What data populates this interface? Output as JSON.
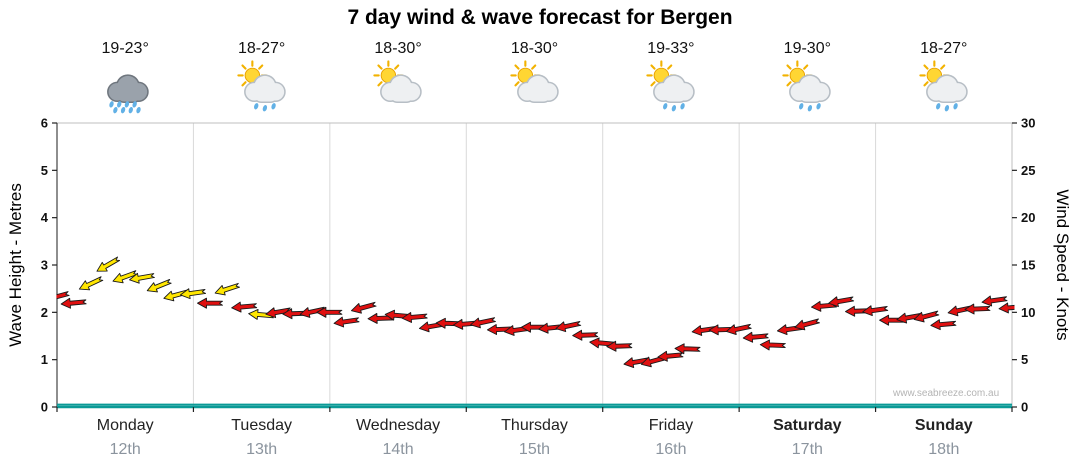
{
  "title": "7 day wind & wave forecast for Bergen",
  "watermark": "www.seabreeze.com.au",
  "axes": {
    "left_title": "Wave Height - Metres",
    "right_title": "Wind Speed - Knots",
    "left_ticks": [
      0,
      1,
      2,
      3,
      4,
      5,
      6
    ],
    "right_ticks": [
      0,
      5,
      10,
      15,
      20,
      25,
      30
    ]
  },
  "days": [
    {
      "name": "Monday",
      "date": "12th",
      "temp": "19-23°",
      "icon": "heavy-rain",
      "bold": false
    },
    {
      "name": "Tuesday",
      "date": "13th",
      "temp": "18-27°",
      "icon": "sun-cloud-rain",
      "bold": false
    },
    {
      "name": "Wednesday",
      "date": "14th",
      "temp": "18-30°",
      "icon": "sun-cloud",
      "bold": false
    },
    {
      "name": "Thursday",
      "date": "15th",
      "temp": "18-30°",
      "icon": "sun-cloud",
      "bold": false
    },
    {
      "name": "Friday",
      "date": "16th",
      "temp": "19-33°",
      "icon": "sun-cloud-rain",
      "bold": false
    },
    {
      "name": "Saturday",
      "date": "17th",
      "temp": "19-30°",
      "icon": "sun-cloud-rain",
      "bold": true
    },
    {
      "name": "Sunday",
      "date": "18th",
      "temp": "18-27°",
      "icon": "sun-cloud-rain",
      "bold": true
    }
  ],
  "chart_data": {
    "type": "wind-barb-timeseries",
    "title": "7 day wind & wave forecast for Bergen",
    "x_unit": "hours",
    "x_range": [
      0,
      168
    ],
    "grid": "vertical-day-boundaries",
    "left_axis": {
      "label": "Wave Height - Metres",
      "range": [
        0,
        6
      ]
    },
    "right_axis": {
      "label": "Wind Speed - Knots",
      "range": [
        0,
        30
      ]
    },
    "arrow_colors": {
      "y": "#ffe600",
      "r": "#e01010"
    },
    "wave_line_color": "#0a9a96",
    "wind": {
      "hours": [
        0,
        3,
        6,
        9,
        12,
        15,
        18,
        21,
        24,
        27,
        30,
        33,
        36,
        39,
        42,
        45,
        48,
        51,
        54,
        57,
        60,
        63,
        66,
        69,
        72,
        75,
        78,
        81,
        84,
        87,
        90,
        93,
        96,
        99,
        102,
        105,
        108,
        111,
        114,
        117,
        120,
        123,
        126,
        129,
        132,
        135,
        138,
        141,
        144,
        147,
        150,
        153,
        156,
        159,
        162,
        165,
        168
      ],
      "knots": [
        11.2,
        11.0,
        13.5,
        14.8,
        14.0,
        13.2,
        12.8,
        12.3,
        11.8,
        11.2,
        12.0,
        10.6,
        10.2,
        9.8,
        10.1,
        9.6,
        10.0,
        9.5,
        10.3,
        9.6,
        9.2,
        9.5,
        9.0,
        8.6,
        9.0,
        8.5,
        8.2,
        8.6,
        8.2,
        8.6,
        8.1,
        7.6,
        7.2,
        6.2,
        5.0,
        4.4,
        5.4,
        6.6,
        7.9,
        8.4,
        7.8,
        7.4,
        7.0,
        8.0,
        9.0,
        10.2,
        11.2,
        10.6,
        10.0,
        9.4,
        9.0,
        9.6,
        9.2,
        10.0,
        10.6,
        10.8,
        10.5
      ],
      "dir_deg": [
        165,
        175,
        155,
        150,
        160,
        170,
        158,
        165,
        172,
        180,
        162,
        175,
        185,
        170,
        178,
        168,
        180,
        172,
        165,
        178,
        185,
        175,
        170,
        182,
        175,
        168,
        178,
        172,
        180,
        174,
        168,
        178,
        185,
        178,
        170,
        165,
        175,
        182,
        172,
        178,
        168,
        175,
        182,
        172,
        165,
        175,
        170,
        178,
        172,
        180,
        170,
        165,
        175,
        168,
        178,
        172,
        175
      ],
      "colors": [
        "r",
        "r",
        "y",
        "y",
        "y",
        "y",
        "y",
        "y",
        "y",
        "r",
        "y",
        "r",
        "y",
        "r",
        "r",
        "r",
        "r",
        "r",
        "r",
        "r",
        "r",
        "r",
        "r",
        "r",
        "r",
        "r",
        "r",
        "r",
        "r",
        "r",
        "r",
        "r",
        "r",
        "r",
        "r",
        "r",
        "r",
        "r",
        "r",
        "r",
        "r",
        "r",
        "r",
        "r",
        "r",
        "r",
        "r",
        "r",
        "r",
        "r",
        "r",
        "r",
        "r",
        "r",
        "r",
        "r",
        "r"
      ]
    },
    "wave_height_m": {
      "hours": [
        0,
        168
      ],
      "values": [
        0.05,
        0.05
      ]
    }
  }
}
